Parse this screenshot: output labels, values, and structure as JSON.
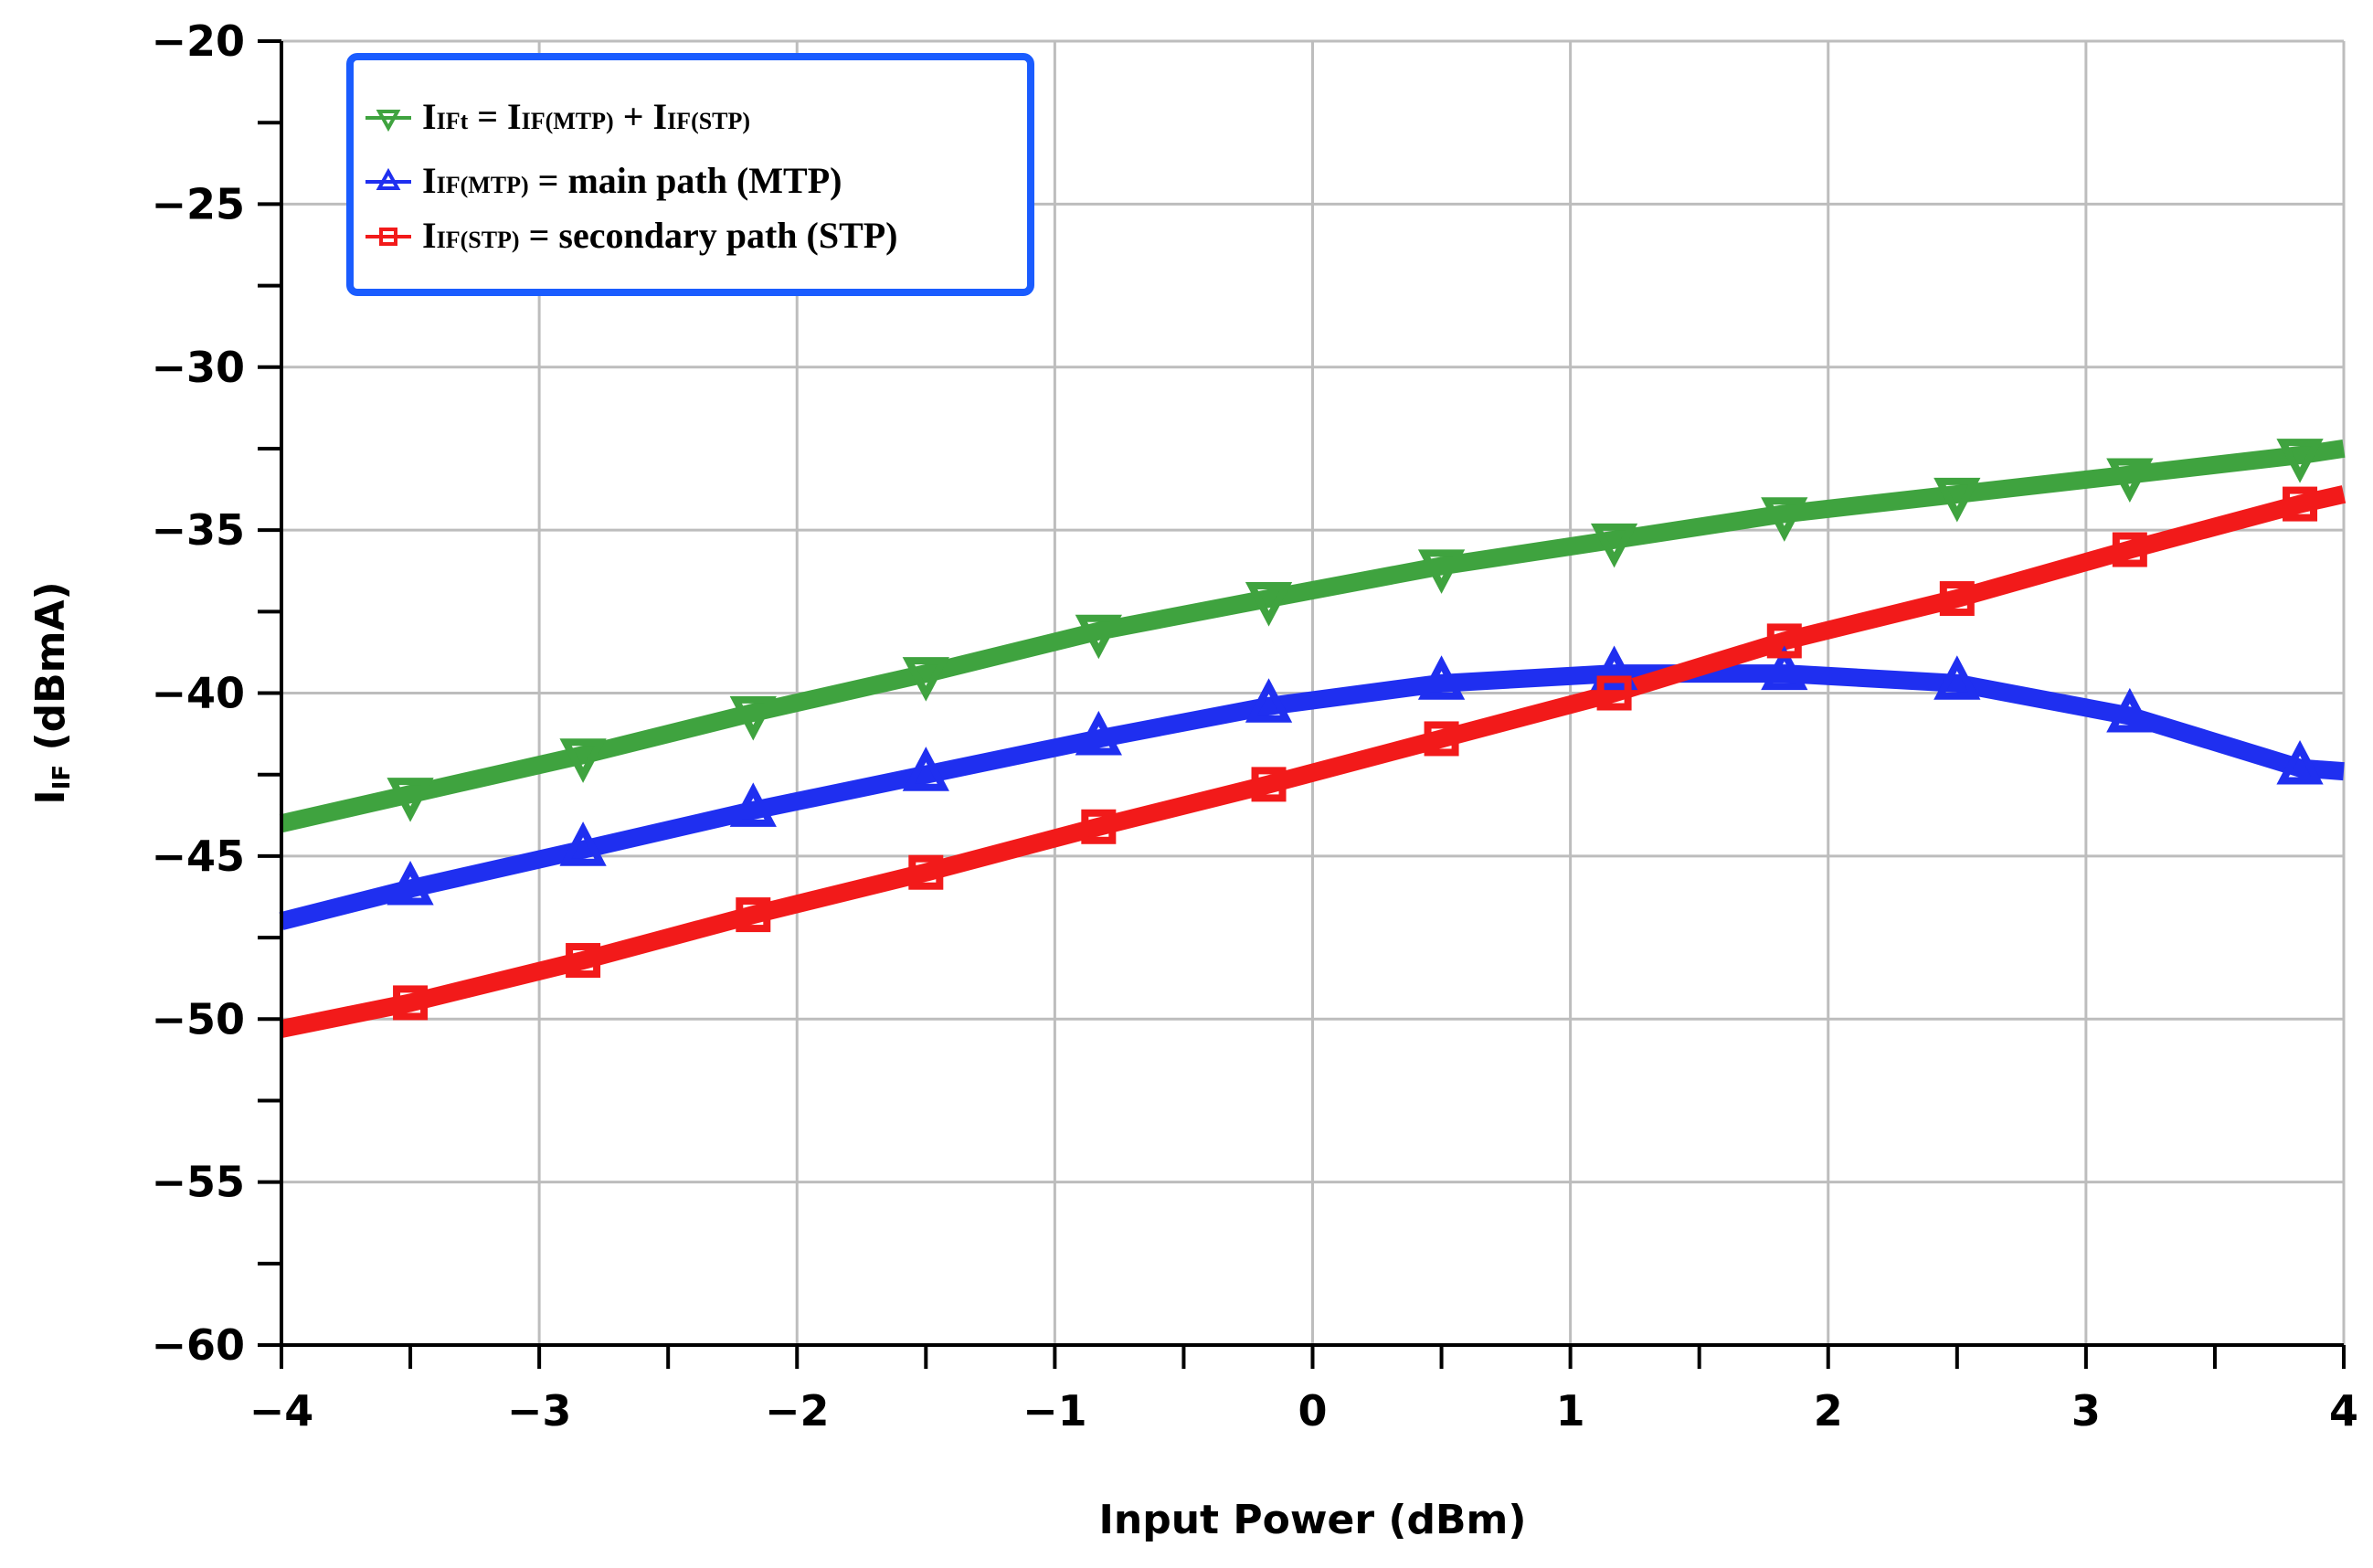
{
  "chart_data": {
    "type": "line",
    "xlabel": "Input Power (dBm)",
    "ylabel_main": "I",
    "ylabel_sub": "IF",
    "ylabel_rest": " (dBmA)",
    "xlim": [
      -4,
      4
    ],
    "ylim": [
      -60,
      -20
    ],
    "xticks": [
      -4,
      -3,
      -2,
      -1,
      0,
      1,
      2,
      3,
      4
    ],
    "xtick_labels": [
      "−4",
      "−3",
      "−2",
      "−1",
      "0",
      "1",
      "2",
      "3",
      "4"
    ],
    "yticks": [
      -20,
      -25,
      -30,
      -35,
      -40,
      -45,
      -50,
      -55,
      -60
    ],
    "ytick_labels": [
      "−20",
      "−25",
      "−30",
      "−35",
      "−40",
      "−45",
      "−50",
      "−55",
      "−60"
    ],
    "grid": true,
    "legend_position": "top-left",
    "series": [
      {
        "key": "total",
        "legend_parts": [
          {
            "t": "I",
            "sub": false
          },
          {
            "t": "IFt",
            "sub": true
          },
          {
            "t": " = I",
            "sub": false
          },
          {
            "t": "IF(MTP)",
            "sub": true
          },
          {
            "t": " + I",
            "sub": false
          },
          {
            "t": "IF(STP)",
            "sub": true
          }
        ],
        "color": "#3fa33f",
        "marker": "triangle-down",
        "x": [
          -4.0,
          -3.5,
          -2.83,
          -2.17,
          -1.5,
          -0.83,
          -0.17,
          0.5,
          1.17,
          1.83,
          2.5,
          3.17,
          3.83,
          4.0
        ],
        "values": [
          -44.0,
          -43.1,
          -41.9,
          -40.6,
          -39.4,
          -38.1,
          -37.1,
          -36.1,
          -35.3,
          -34.5,
          -33.9,
          -33.3,
          -32.7,
          -32.5
        ],
        "marker_x": [
          -3.5,
          -2.83,
          -2.17,
          -1.5,
          -0.83,
          -0.17,
          0.5,
          1.17,
          1.83,
          2.5,
          3.17,
          3.83
        ],
        "marker_values": [
          -43.1,
          -41.9,
          -40.6,
          -39.4,
          -38.1,
          -37.1,
          -36.1,
          -35.3,
          -34.5,
          -33.9,
          -33.3,
          -32.7
        ]
      },
      {
        "key": "mtp",
        "legend_parts": [
          {
            "t": "I",
            "sub": false
          },
          {
            "t": "IF(MTP)",
            "sub": true
          },
          {
            "t": " = main path (MTP)",
            "sub": false
          }
        ],
        "color": "#1f2ff0",
        "marker": "triangle-up",
        "x": [
          -4.0,
          -3.5,
          -2.83,
          -2.17,
          -1.5,
          -0.83,
          -0.17,
          0.5,
          1.17,
          1.83,
          2.5,
          3.17,
          3.83,
          4.0
        ],
        "values": [
          -47.0,
          -46.0,
          -44.8,
          -43.6,
          -42.5,
          -41.4,
          -40.4,
          -39.7,
          -39.4,
          -39.4,
          -39.7,
          -40.7,
          -42.3,
          -42.4
        ],
        "marker_x": [
          -3.5,
          -2.83,
          -2.17,
          -1.5,
          -0.83,
          -0.17,
          0.5,
          1.17,
          1.83,
          2.5,
          3.17,
          3.83
        ],
        "marker_values": [
          -46.0,
          -44.8,
          -43.6,
          -42.5,
          -41.4,
          -40.4,
          -39.7,
          -39.4,
          -39.4,
          -39.7,
          -40.7,
          -42.3
        ]
      },
      {
        "key": "stp",
        "legend_parts": [
          {
            "t": "I",
            "sub": false
          },
          {
            "t": "IF(STP)",
            "sub": true
          },
          {
            "t": " = secondary path (STP)",
            "sub": false
          }
        ],
        "color": "#f21a1a",
        "marker": "square",
        "x": [
          -4.0,
          -3.5,
          -2.83,
          -2.17,
          -1.5,
          -0.83,
          -0.17,
          0.5,
          1.17,
          1.83,
          2.5,
          3.17,
          3.83,
          4.0
        ],
        "values": [
          -50.3,
          -49.5,
          -48.2,
          -46.8,
          -45.5,
          -44.1,
          -42.8,
          -41.4,
          -40.0,
          -38.4,
          -37.1,
          -35.6,
          -34.2,
          -33.9
        ],
        "marker_x": [
          -3.5,
          -2.83,
          -2.17,
          -1.5,
          -0.83,
          -0.17,
          0.5,
          1.17,
          1.83,
          2.5,
          3.17,
          3.83
        ],
        "marker_values": [
          -49.5,
          -48.2,
          -46.8,
          -45.5,
          -44.1,
          -42.8,
          -41.4,
          -40.0,
          -38.4,
          -37.1,
          -35.6,
          -34.2
        ]
      }
    ]
  }
}
